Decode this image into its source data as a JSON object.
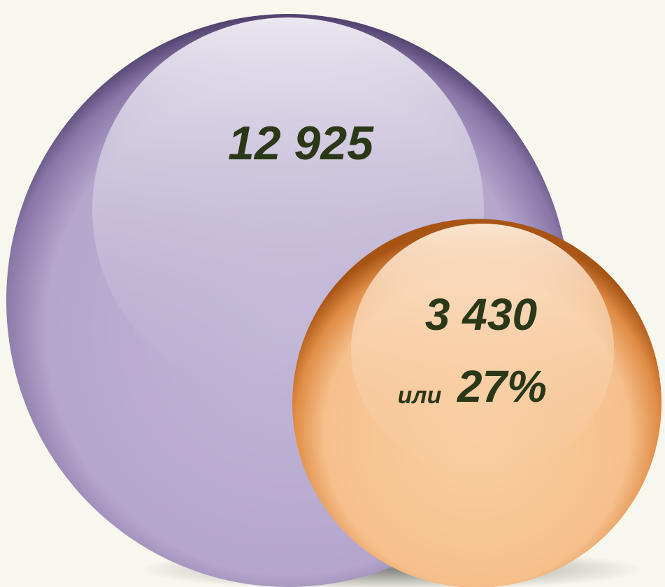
{
  "bubbles": [
    {
      "label": "12 925"
    },
    {
      "label": "3 430",
      "note": "или",
      "share": "27%"
    }
  ]
}
